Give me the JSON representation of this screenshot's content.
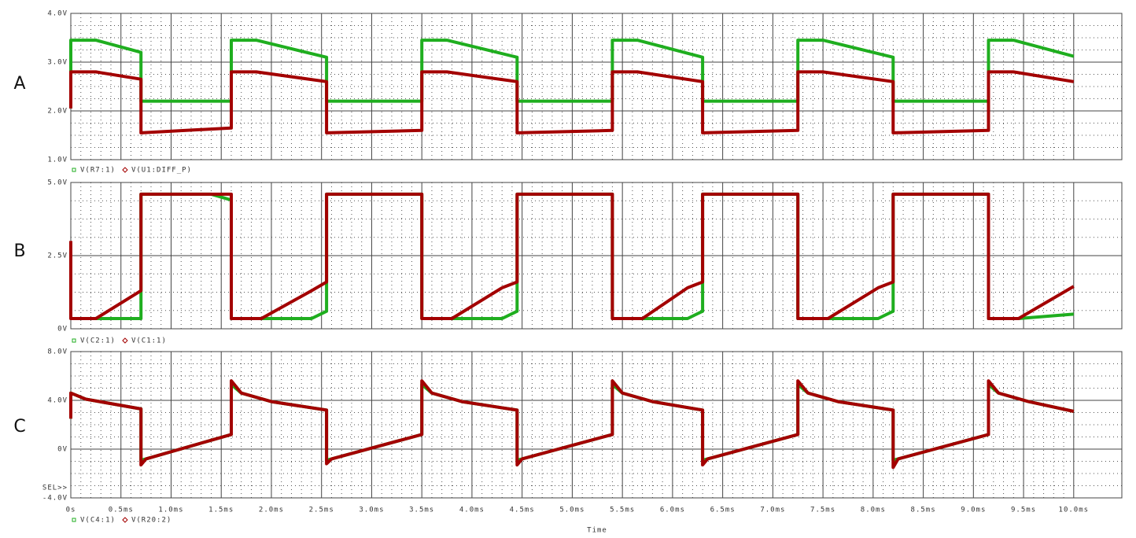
{
  "chart_data": [
    {
      "type": "line",
      "panel": "A",
      "x": [
        0,
        0,
        0.25,
        0.7,
        0.7,
        1.6,
        1.6,
        1.85,
        2.55,
        2.55,
        3.5,
        3.5,
        3.75,
        4.45,
        4.45,
        5.4,
        5.4,
        5.65,
        6.3,
        6.3,
        7.25,
        7.25,
        7.5,
        8.2,
        8.2,
        9.15,
        9.15,
        9.4,
        10.0
      ],
      "xlim": [
        0,
        10.48
      ],
      "xticks": [
        0,
        0.5,
        1,
        1.5,
        2,
        2.5,
        3,
        3.5,
        4,
        4.5,
        5,
        5.5,
        6,
        6.5,
        7,
        7.5,
        8,
        8.5,
        9,
        9.5,
        10
      ],
      "ylim": [
        1,
        4
      ],
      "yticks": [
        {
          "value": 1,
          "label": "1.0V"
        },
        {
          "value": 2,
          "label": "2.0V"
        },
        {
          "value": 3,
          "label": "3.0V"
        },
        {
          "value": 4,
          "label": "4.0V"
        }
      ],
      "series": [
        {
          "name": "V(R7:1)",
          "color": "#1fae1f",
          "values": [
            2.05,
            3.45,
            3.45,
            3.2,
            2.2,
            2.2,
            3.45,
            3.45,
            3.1,
            2.2,
            2.2,
            3.45,
            3.45,
            3.1,
            2.2,
            2.2,
            3.45,
            3.45,
            3.1,
            2.2,
            2.2,
            3.45,
            3.45,
            3.1,
            2.2,
            2.2,
            3.45,
            3.45,
            3.12
          ]
        },
        {
          "name": "V(U1:DIFF_P)",
          "color": "#a30000",
          "values": [
            2.05,
            2.8,
            2.8,
            2.65,
            1.55,
            1.65,
            2.8,
            2.8,
            2.6,
            1.55,
            1.6,
            2.8,
            2.8,
            2.6,
            1.55,
            1.6,
            2.8,
            2.8,
            2.6,
            1.55,
            1.6,
            2.8,
            2.8,
            2.6,
            1.55,
            1.6,
            2.8,
            2.8,
            2.6
          ]
        }
      ]
    },
    {
      "type": "line",
      "panel": "B",
      "x": [
        0,
        0,
        0.25,
        0.7,
        0.7,
        1.4,
        1.6,
        1.6,
        1.9,
        2.4,
        2.55,
        2.55,
        3.3,
        3.5,
        3.5,
        3.8,
        4.3,
        4.45,
        4.45,
        5.2,
        5.4,
        5.4,
        5.7,
        6.15,
        6.3,
        6.3,
        7.1,
        7.25,
        7.25,
        7.55,
        8.05,
        8.2,
        8.2,
        9.0,
        9.15,
        9.15,
        9.45,
        10.0
      ],
      "xlim": [
        0,
        10.48
      ],
      "xticks": [
        0,
        0.5,
        1,
        1.5,
        2,
        2.5,
        3,
        3.5,
        4,
        4.5,
        5,
        5.5,
        6,
        6.5,
        7,
        7.5,
        8,
        8.5,
        9,
        9.5,
        10
      ],
      "ylim": [
        0,
        5
      ],
      "yticks": [
        {
          "value": 0,
          "label": "0V"
        },
        {
          "value": 2.5,
          "label": "2.5V"
        },
        {
          "value": 5,
          "label": "5.0V"
        }
      ],
      "series": [
        {
          "name": "V(C2:1)",
          "color": "#1fae1f",
          "values": [
            0.35,
            0.35,
            0.35,
            0.35,
            4.6,
            4.6,
            4.4,
            0.35,
            0.35,
            0.35,
            0.6,
            4.6,
            4.6,
            4.6,
            0.35,
            0.35,
            0.35,
            0.6,
            4.6,
            4.6,
            4.6,
            0.35,
            0.35,
            0.35,
            0.6,
            4.6,
            4.6,
            4.6,
            0.35,
            0.35,
            0.35,
            0.6,
            4.6,
            4.6,
            4.6,
            0.35,
            0.35,
            0.5
          ]
        },
        {
          "name": "V(C1:1)",
          "color": "#a30000",
          "values": [
            3.0,
            0.35,
            0.35,
            1.3,
            4.6,
            4.6,
            4.6,
            0.35,
            0.35,
            1.3,
            1.6,
            4.6,
            4.6,
            4.6,
            0.35,
            0.35,
            1.4,
            1.6,
            4.6,
            4.6,
            4.6,
            0.35,
            0.35,
            1.4,
            1.6,
            4.6,
            4.6,
            4.6,
            0.35,
            0.35,
            1.4,
            1.6,
            4.6,
            4.6,
            4.6,
            0.35,
            0.35,
            1.45
          ]
        }
      ]
    },
    {
      "type": "line",
      "panel": "C",
      "x_label": "Time",
      "annotation": "SEL>>",
      "x": [
        0,
        0,
        0.15,
        0.7,
        0.7,
        0.75,
        1.6,
        1.6,
        1.7,
        2.0,
        2.55,
        2.55,
        2.6,
        3.5,
        3.5,
        3.6,
        3.9,
        4.45,
        4.45,
        4.5,
        5.4,
        5.4,
        5.5,
        5.8,
        6.3,
        6.3,
        6.35,
        7.25,
        7.25,
        7.35,
        7.65,
        8.2,
        8.2,
        8.25,
        9.15,
        9.15,
        9.25,
        9.55,
        10.0
      ],
      "xlim": [
        0,
        10.48
      ],
      "xticks": [
        {
          "value": 0,
          "label": "0s"
        },
        {
          "value": 0.5,
          "label": "0.5ms"
        },
        {
          "value": 1,
          "label": "1.0ms"
        },
        {
          "value": 1.5,
          "label": "1.5ms"
        },
        {
          "value": 2,
          "label": "2.0ms"
        },
        {
          "value": 2.5,
          "label": "2.5ms"
        },
        {
          "value": 3,
          "label": "3.0ms"
        },
        {
          "value": 3.5,
          "label": "3.5ms"
        },
        {
          "value": 4,
          "label": "4.0ms"
        },
        {
          "value": 4.5,
          "label": "4.5ms"
        },
        {
          "value": 5,
          "label": "5.0ms"
        },
        {
          "value": 5.5,
          "label": "5.5ms"
        },
        {
          "value": 6,
          "label": "6.0ms"
        },
        {
          "value": 6.5,
          "label": "6.5ms"
        },
        {
          "value": 7,
          "label": "7.0ms"
        },
        {
          "value": 7.5,
          "label": "7.5ms"
        },
        {
          "value": 8,
          "label": "8.0ms"
        },
        {
          "value": 8.5,
          "label": "8.5ms"
        },
        {
          "value": 9,
          "label": "9.0ms"
        },
        {
          "value": 9.5,
          "label": "9.5ms"
        },
        {
          "value": 10,
          "label": "10.0ms"
        }
      ],
      "ylim": [
        -4,
        8
      ],
      "yticks": [
        {
          "value": -4,
          "label": "-4.0V"
        },
        {
          "value": 0,
          "label": "0V"
        },
        {
          "value": 4,
          "label": "4.0V"
        },
        {
          "value": 8,
          "label": "8.0V"
        }
      ],
      "series": [
        {
          "name": "V(C4:1)",
          "color": "#1fae1f",
          "values": [
            2.5,
            4.6,
            4.1,
            3.3,
            -0.9,
            -0.8,
            1.2,
            5.3,
            4.6,
            3.9,
            3.2,
            -0.9,
            -0.8,
            1.2,
            5.3,
            4.6,
            3.9,
            3.2,
            -0.9,
            -0.8,
            1.2,
            5.3,
            4.6,
            3.9,
            3.2,
            -0.9,
            -0.8,
            1.2,
            5.3,
            4.6,
            3.9,
            3.2,
            -0.9,
            -0.8,
            1.2,
            5.3,
            4.6,
            3.9,
            3.1
          ]
        },
        {
          "name": "V(R20:2)",
          "color": "#a30000",
          "values": [
            2.5,
            4.6,
            4.1,
            3.3,
            -1.3,
            -0.8,
            1.2,
            5.6,
            4.6,
            3.9,
            3.2,
            -1.2,
            -0.8,
            1.2,
            5.6,
            4.6,
            3.9,
            3.2,
            -1.3,
            -0.8,
            1.2,
            5.6,
            4.6,
            3.9,
            3.2,
            -1.3,
            -0.8,
            1.2,
            5.6,
            4.6,
            3.9,
            3.2,
            -1.5,
            -0.8,
            1.2,
            5.6,
            4.6,
            3.9,
            3.1
          ]
        }
      ]
    }
  ]
}
